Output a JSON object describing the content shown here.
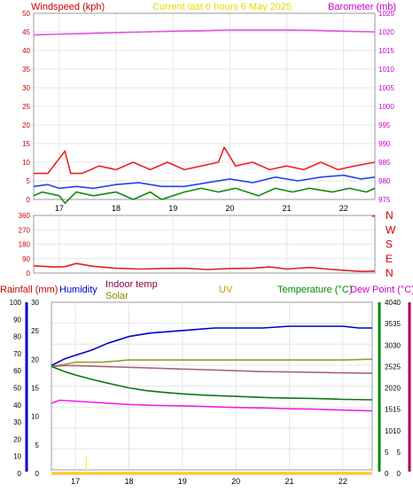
{
  "chart_data": [
    {
      "id": "wind_baro",
      "type": "line",
      "title": "Current last 6 hours 6 May 2025",
      "ylabel_left": "Windspeed (kph)",
      "ylabel_right": "Barometer (mb)",
      "x_ticks": [
        "17",
        "18",
        "19",
        "20",
        "21",
        "22"
      ],
      "x_range": [
        16.55,
        22.55
      ],
      "ylim_left": [
        0,
        50
      ],
      "yticks_left": [
        "0",
        "5",
        "10",
        "15",
        "20",
        "25",
        "30",
        "35",
        "40",
        "45",
        "50"
      ],
      "ylim_right": [
        975,
        1025
      ],
      "yticks_right": [
        "975",
        "980",
        "985",
        "990",
        "995",
        "1000",
        "1005",
        "1010",
        "1015",
        "1020",
        "1025"
      ],
      "grid": true,
      "colors": {
        "title": "#dddd00",
        "left_axis": "#cc0000",
        "right_axis": "#cc00cc"
      },
      "series": [
        {
          "key": "baro",
          "axis": "right",
          "color": "#dd55dd",
          "x": [
            16.55,
            17.0,
            17.5,
            18.0,
            18.5,
            19.0,
            19.5,
            20.0,
            20.5,
            21.0,
            21.5,
            22.0,
            22.55
          ],
          "values": [
            1019.2,
            1019.4,
            1019.6,
            1019.8,
            1020.0,
            1020.2,
            1020.3,
            1020.5,
            1020.5,
            1020.5,
            1020.4,
            1020.2,
            1020.0
          ]
        },
        {
          "key": "gust",
          "axis": "left",
          "color": "#ee2222",
          "x": [
            16.55,
            16.8,
            17.1,
            17.2,
            17.4,
            17.7,
            18.0,
            18.3,
            18.6,
            18.9,
            19.2,
            19.5,
            19.8,
            19.9,
            20.1,
            20.4,
            20.7,
            21.0,
            21.3,
            21.6,
            21.9,
            22.2,
            22.55
          ],
          "values": [
            7,
            7,
            13,
            7,
            7,
            9,
            8,
            10,
            8,
            10,
            8,
            9,
            10,
            14,
            9,
            10,
            8,
            9,
            8,
            10,
            8,
            9,
            10
          ]
        },
        {
          "key": "avg",
          "axis": "left",
          "color": "#2244ee",
          "x": [
            16.55,
            16.8,
            17.0,
            17.3,
            17.6,
            18.0,
            18.4,
            18.8,
            19.2,
            19.6,
            20.0,
            20.4,
            20.8,
            21.2,
            21.6,
            22.0,
            22.3,
            22.55
          ],
          "values": [
            3.5,
            4,
            3,
            3.5,
            3,
            4,
            4.5,
            3.5,
            3.5,
            4.5,
            5.5,
            4.5,
            6,
            5,
            6,
            6.5,
            5.5,
            6
          ]
        },
        {
          "key": "wind",
          "axis": "left",
          "color": "#118811",
          "x": [
            16.55,
            16.7,
            17.0,
            17.1,
            17.3,
            17.6,
            18.0,
            18.3,
            18.6,
            18.8,
            19.2,
            19.5,
            19.8,
            20.1,
            20.5,
            20.8,
            21.1,
            21.4,
            21.8,
            22.1,
            22.4,
            22.55
          ],
          "values": [
            1,
            2,
            1,
            -1,
            2,
            1,
            2,
            0,
            2,
            0,
            2,
            3,
            2,
            3,
            1,
            3,
            2,
            3,
            2,
            3,
            2,
            3
          ]
        }
      ]
    },
    {
      "id": "wind_dir",
      "type": "line",
      "ylim": [
        0,
        360
      ],
      "yticks": [
        "0",
        "90",
        "180",
        "270",
        "360"
      ],
      "compass": [
        "N",
        "W",
        "S",
        "E",
        "N"
      ],
      "colors": {
        "compass": "#cc0000"
      },
      "x_range": [
        16.55,
        22.55
      ],
      "series": [
        {
          "key": "dir",
          "color": "#dd2222",
          "x": [
            16.55,
            16.9,
            17.1,
            17.3,
            17.6,
            18.0,
            18.4,
            18.8,
            19.2,
            19.6,
            20.0,
            20.4,
            20.7,
            21.0,
            21.4,
            21.8,
            22.1,
            22.3,
            22.55
          ],
          "values": [
            45,
            38,
            40,
            60,
            42,
            30,
            25,
            28,
            30,
            22,
            28,
            30,
            38,
            25,
            35,
            22,
            15,
            10,
            12
          ]
        },
        {
          "key": "dir_end",
          "color": "#dd2222",
          "x": [
            22.5,
            22.55
          ],
          "values": [
            355,
            358
          ]
        }
      ]
    },
    {
      "id": "temp_hum",
      "type": "line",
      "legend": [
        "Rainfall (mm)",
        "Humidity",
        "Indoor temp",
        "Solar",
        "UV",
        "Temperature (°C)",
        "Dew Point (°C)"
      ],
      "legend_colors": [
        "#cc0000",
        "#0000cc",
        "#880044",
        "#888800",
        "#cc9900",
        "#008800",
        "#cc00cc"
      ],
      "x_ticks": [
        "17",
        "18",
        "19",
        "20",
        "21",
        "22"
      ],
      "x_range": [
        16.55,
        22.55
      ],
      "axis_humidity": {
        "ylim": [
          0,
          100
        ],
        "ticks": [
          "0",
          "10",
          "20",
          "30",
          "40",
          "50",
          "60",
          "70",
          "80",
          "90",
          "100"
        ],
        "color": "#0000cc"
      },
      "axis_rain": {
        "ylim": [
          0,
          30
        ],
        "ticks": [
          "0",
          "5",
          "10",
          "15",
          "20",
          "25",
          "30"
        ],
        "color": "#cc0000"
      },
      "axis_temp": {
        "ylim": [
          0,
          40
        ],
        "ticks": [
          "0",
          "5",
          "10",
          "15",
          "20",
          "25",
          "30",
          "35",
          "40"
        ],
        "color": "#008800"
      },
      "axis_dew": {
        "ylim": [
          0,
          40
        ],
        "ticks": [
          "0",
          "5",
          "10",
          "15",
          "20",
          "25",
          "30",
          "35",
          "40"
        ],
        "color": "#aa0055"
      },
      "series": [
        {
          "key": "humidity",
          "axis": "humidity",
          "color": "#0000cc",
          "x": [
            16.55,
            16.8,
            17.0,
            17.3,
            17.6,
            18.0,
            18.4,
            18.8,
            19.2,
            19.6,
            20.0,
            20.5,
            21.0,
            21.5,
            22.0,
            22.3,
            22.55
          ],
          "values": [
            63,
            67,
            69,
            72,
            76,
            80,
            82,
            83,
            84,
            85,
            85,
            85,
            86,
            86,
            86,
            85,
            85
          ]
        },
        {
          "key": "solar",
          "axis": "temp",
          "color": "#999933",
          "x": [
            16.55,
            16.8,
            17.0,
            17.5,
            18.0,
            18.5,
            19.0,
            19.5,
            20.0,
            20.5,
            21.0,
            21.5,
            22.0,
            22.55
          ],
          "values": [
            25,
            25.5,
            26,
            26,
            26.5,
            26.5,
            26.5,
            26.5,
            26.5,
            26.5,
            26.5,
            26.5,
            26.5,
            26.7
          ]
        },
        {
          "key": "indoor",
          "axis": "temp",
          "color": "#aa6677",
          "x": [
            16.55,
            16.8,
            17.0,
            17.5,
            18.0,
            18.5,
            19.0,
            19.5,
            20.0,
            20.5,
            21.0,
            21.5,
            22.0,
            22.55
          ],
          "values": [
            25,
            25.2,
            25.2,
            25,
            24.8,
            24.6,
            24.4,
            24.2,
            24.0,
            23.8,
            23.7,
            23.6,
            23.5,
            23.4
          ]
        },
        {
          "key": "temp",
          "axis": "temp",
          "color": "#117711",
          "x": [
            16.55,
            16.8,
            17.0,
            17.3,
            17.6,
            18.0,
            18.3,
            18.6,
            19.0,
            19.4,
            19.8,
            20.2,
            20.6,
            21.0,
            21.5,
            22.0,
            22.55
          ],
          "values": [
            25,
            23.8,
            23,
            22,
            21.1,
            20,
            19.4,
            19,
            18.6,
            18.3,
            18.1,
            17.9,
            17.7,
            17.6,
            17.5,
            17.3,
            17.2
          ]
        },
        {
          "key": "dew",
          "axis": "dew",
          "color": "#ee22ee",
          "x": [
            16.55,
            16.7,
            17.0,
            17.5,
            18.0,
            18.5,
            19.0,
            19.5,
            20.0,
            20.5,
            21.0,
            21.5,
            22.0,
            22.55
          ],
          "values": [
            16.4,
            17.1,
            16.9,
            16.5,
            16.1,
            15.9,
            15.8,
            15.6,
            15.4,
            15.3,
            15.1,
            15.0,
            14.8,
            14.6
          ]
        },
        {
          "key": "rain",
          "axis": "rain",
          "color": "#cc0000",
          "x": [
            16.55,
            22.55
          ],
          "values": [
            0,
            0
          ]
        },
        {
          "key": "uv",
          "axis": "humidity",
          "color": "#ffcc00",
          "x": [
            16.55,
            22.55
          ],
          "values": [
            0,
            0
          ]
        }
      ]
    }
  ]
}
